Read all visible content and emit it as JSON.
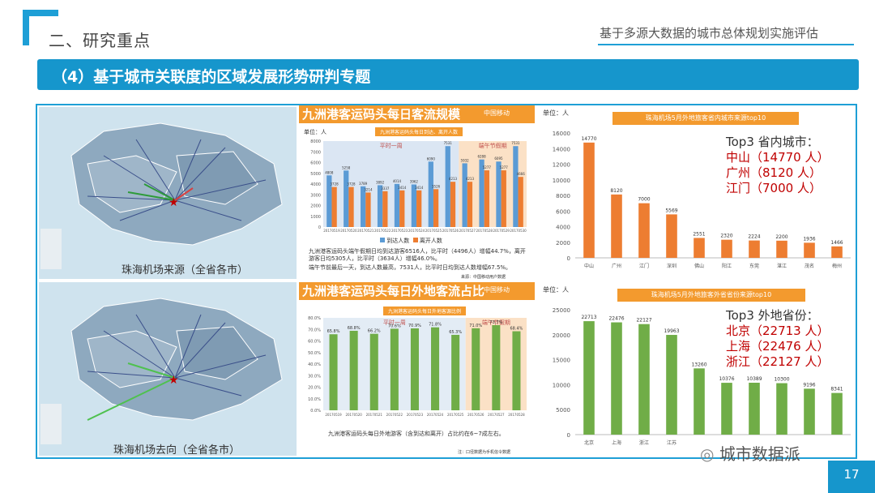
{
  "header": {
    "section": "二、研究重点",
    "subtitle": "基于多源大数据的城市总体规划实施评估",
    "banner": "（4）基于城市关联度的区域发展形势研判专题"
  },
  "maps": {
    "top_caption": "珠海机场来源（全省各市）",
    "bottom_caption": "珠海机场去向（全省各市）"
  },
  "middle_top": {
    "title": "九洲港客运码头每日客流规模",
    "logo_text": "中国移动",
    "unit": "单位：人",
    "chart_inner_title": "九洲港客运码头每日到达、离开人数",
    "period_normal": "平时一周",
    "period_holiday": "端午节假期",
    "legend": [
      "到达人数",
      "离开人数"
    ],
    "note1_black": "九洲港客运码头端午假期日均到达游客6516人，比平时（4496人）增幅44.7%，离开游客日均5305人，比平时（3634人）增幅46.0%。",
    "note2_black": "端午节前最后一天，到达人数最高，7531人，比平时日均到达人数增幅67.5%。",
    "footnote": "来源：中国移动用户数据"
  },
  "middle_bottom": {
    "title": "九洲港客运码头每日外地客流占比",
    "logo_text": "中国移动",
    "chart_inner_title": "九洲港客运码头每日外地客源比例",
    "period_normal": "平时一周",
    "period_holiday": "端午节假期",
    "note": "九洲港客运码头每日外地游客（含到达和离开）占比约在6~7成左右。",
    "footnote": "注：口径数据为手机信令数据"
  },
  "right_top": {
    "unit": "单位：人",
    "title": "珠海机场5月外地旅客省内城市来源top10",
    "top3_heading": "Top3 省内城市：",
    "top3": [
      "中山（14770 人）",
      "广州（8120 人）",
      "江门（7000 人）"
    ]
  },
  "right_bottom": {
    "unit": "单位：人",
    "title": "珠海机场5月外地旅客外省省份来源top10",
    "top3_heading": "Top3 外地省份：",
    "top3": [
      "北京（22713 人）",
      "上海（22476 人）",
      "浙江（22127 人）"
    ]
  },
  "watermark": "城市数据派",
  "page_number": "17",
  "colors": {
    "accent": "#1696cc",
    "orange": "#ed7d31",
    "green": "#70ad47",
    "blue": "#5b9bd5",
    "title_orange": "#f39a2e"
  },
  "chart_data": [
    {
      "type": "bar",
      "title": "九洲港客运码头每日到达、离开人数",
      "categories": [
        "20170519",
        "20170520",
        "20170521",
        "20170522",
        "20170523",
        "20170524",
        "20170525",
        "20170526",
        "20170527",
        "20170528",
        "20170529",
        "20170530"
      ],
      "series": [
        {
          "name": "到达人数",
          "values": [
            4808,
            5258,
            3789,
            3892,
            4014,
            3962,
            6090,
            7531,
            5932,
            6288,
            6095,
            7531
          ]
        },
        {
          "name": "离开人数",
          "values": [
            3728,
            3728,
            3214,
            3337,
            3414,
            3414,
            3526,
            4213,
            4213,
            5277,
            5277,
            4666
          ]
        }
      ],
      "ylim": [
        0,
        8000
      ]
    },
    {
      "type": "bar",
      "title": "九洲港客运码头每日外地客源比例",
      "categories": [
        "20170519",
        "20170520",
        "20170521",
        "20170522",
        "20170523",
        "20170524",
        "20170525",
        "20170526",
        "20170527",
        "20170528"
      ],
      "values": [
        65.8,
        68.8,
        66.2,
        70.6,
        70.9,
        71.8,
        65.3,
        71.0,
        73.7,
        68.4
      ],
      "ylim": [
        0,
        80
      ]
    },
    {
      "type": "bar",
      "title": "珠海机场5月外地旅客省内城市来源top10",
      "categories": [
        "中山",
        "广州",
        "江门",
        "深圳",
        "佛山",
        "阳江",
        "东莞",
        "湛江",
        "茂名",
        "梅州"
      ],
      "values": [
        14770,
        8120,
        7000,
        5569,
        2551,
        2320,
        2224,
        2200,
        1936,
        1466
      ],
      "ylim": [
        0,
        16000
      ]
    },
    {
      "type": "bar",
      "title": "珠海机场5月外地旅客外省省份来源top10",
      "categories": [
        "北京",
        "上海",
        "浙江",
        "江苏",
        "",
        "",
        "",
        "",
        "",
        ""
      ],
      "values": [
        22713,
        22476,
        22127,
        19963,
        13260,
        10376,
        10389,
        10300,
        9196,
        8341
      ],
      "ylim": [
        0,
        25000
      ]
    }
  ]
}
